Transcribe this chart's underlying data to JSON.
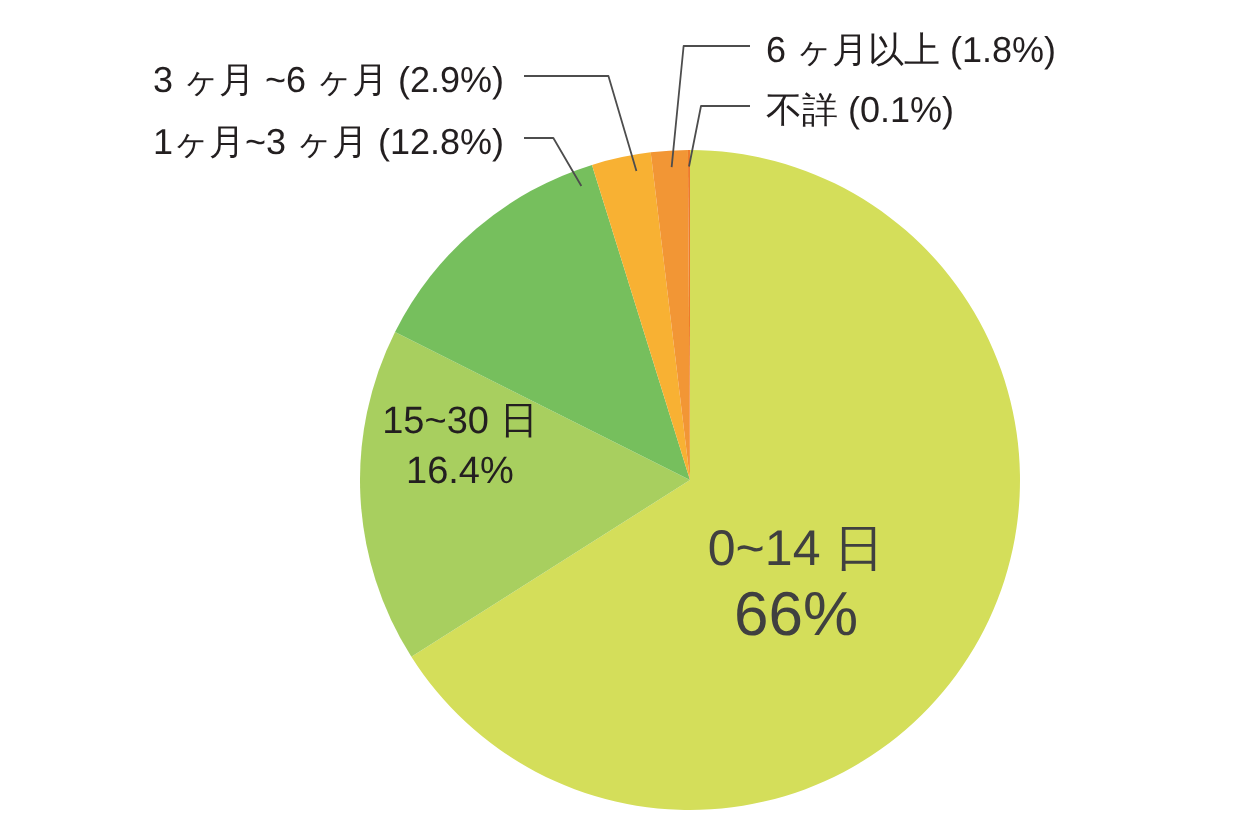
{
  "chart_data": {
    "type": "pie",
    "categories": [
      "0~14 日",
      "15~30 日",
      "1ヶ月~3 ヶ月",
      "3 ヶ月 ~6 ヶ月",
      "6 ヶ月以上",
      "不詳"
    ],
    "values": [
      66,
      16.4,
      12.8,
      2.9,
      1.8,
      0.1
    ],
    "value_labels": [
      "66%",
      "16.4%",
      "(12.8%)",
      "(2.9%)",
      "(1.8%)",
      "(0.1%)"
    ],
    "colors": [
      "#d4de5a",
      "#a8cf5f",
      "#76bf5d",
      "#f8b133",
      "#f29635",
      "#ee7a2a"
    ]
  }
}
